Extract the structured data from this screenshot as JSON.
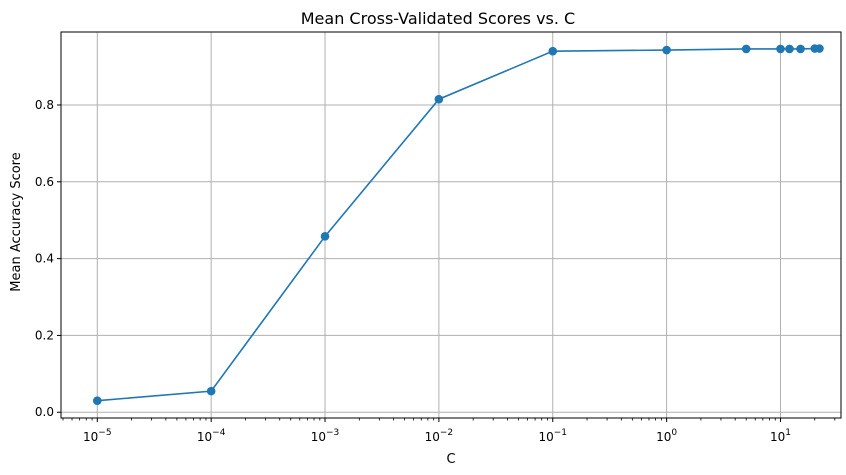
{
  "chart_data": {
    "type": "line",
    "title": "Mean Cross-Validated Scores vs. C",
    "xlabel": "C",
    "ylabel": "Mean Accuracy Score",
    "xscale": "log",
    "xlim": [
      4.8e-06,
      34
    ],
    "ylim": [
      -0.015,
      0.99
    ],
    "grid": true,
    "x_ticks": [
      {
        "value": 1e-05,
        "base": "10",
        "exp": "−5"
      },
      {
        "value": 0.0001,
        "base": "10",
        "exp": "−4"
      },
      {
        "value": 0.001,
        "base": "10",
        "exp": "−3"
      },
      {
        "value": 0.01,
        "base": "10",
        "exp": "−2"
      },
      {
        "value": 0.1,
        "base": "10",
        "exp": "−1"
      },
      {
        "value": 1,
        "base": "10",
        "exp": "0"
      },
      {
        "value": 10,
        "base": "10",
        "exp": "1"
      }
    ],
    "y_ticks": [
      {
        "value": 0.0,
        "label": "0.0"
      },
      {
        "value": 0.2,
        "label": "0.2"
      },
      {
        "value": 0.4,
        "label": "0.4"
      },
      {
        "value": 0.6,
        "label": "0.6"
      },
      {
        "value": 0.8,
        "label": "0.8"
      }
    ],
    "series": [
      {
        "color": "#1f77b4",
        "marker": "circle",
        "x": [
          1e-05,
          0.0001,
          0.001,
          0.01,
          0.1,
          1,
          5,
          10,
          12,
          15,
          20,
          22
        ],
        "y": [
          0.03,
          0.055,
          0.458,
          0.815,
          0.94,
          0.943,
          0.946,
          0.946,
          0.946,
          0.946,
          0.947,
          0.947
        ]
      }
    ]
  }
}
